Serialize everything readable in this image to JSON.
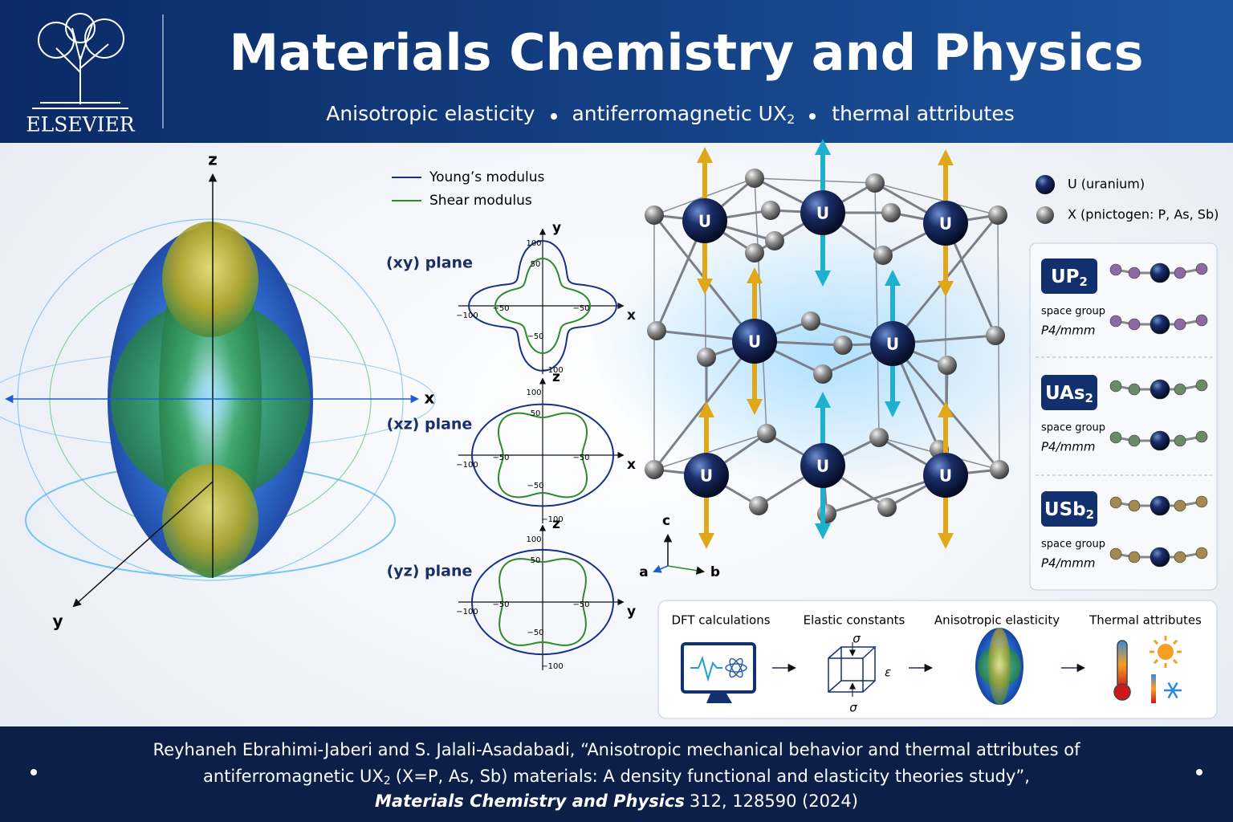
{
  "header": {
    "publisher": "ELSEVIER",
    "title": "Materials Chemistry and Physics",
    "subtitle": {
      "topics": [
        "Anisotropic elasticity",
        "antiferromagnetic UX",
        "thermal attributes"
      ],
      "subscript": "2"
    }
  },
  "surface": {
    "axes": [
      "z",
      "x",
      "y"
    ]
  },
  "polar": {
    "legend": [
      "Young’s modulus",
      "Shear modulus"
    ],
    "ticks": [
      "100",
      "50",
      "−50",
      "−100"
    ],
    "planes": [
      {
        "label": "(xy) plane",
        "axes": [
          "y",
          "x"
        ]
      },
      {
        "label": "(xz) plane",
        "axes": [
          "z",
          "x"
        ]
      },
      {
        "label": "(yz) plane",
        "axes": [
          "z",
          "y"
        ]
      }
    ]
  },
  "crystal": {
    "atom_label": "U",
    "axes": [
      "c",
      "a",
      "b"
    ]
  },
  "legend": [
    "U (uranium)",
    "X (pnictogen: P, As, Sb)"
  ],
  "compounds": [
    {
      "formula": "UP",
      "subscript": "2",
      "group_label": "space group",
      "group": "P4/mmm"
    },
    {
      "formula": "UAs",
      "subscript": "2",
      "group_label": "space group",
      "group": "P4/mmm"
    },
    {
      "formula": "USb",
      "subscript": "2",
      "group_label": "space group",
      "group": "P4/mmm"
    }
  ],
  "workflow": {
    "steps": [
      "DFT calculations",
      "Elastic constants",
      "Anisotropic elasticity",
      "Thermal attributes"
    ],
    "stress": "σ",
    "strain": "ε"
  },
  "citation": {
    "authors": "Reyhaneh Ebrahimi-Jaberi and S. Jalali-Asadabadi, “Anisotropic mechanical behavior and thermal attributes of",
    "title_start": "antiferromagnetic UX",
    "subscript": "2",
    "title_end": "(X=P, As, Sb) materials: A density functional and elasticity theories study”,",
    "journal": "Materials Chemistry and Physics",
    "reference": "312, 128590 (2024)"
  }
}
